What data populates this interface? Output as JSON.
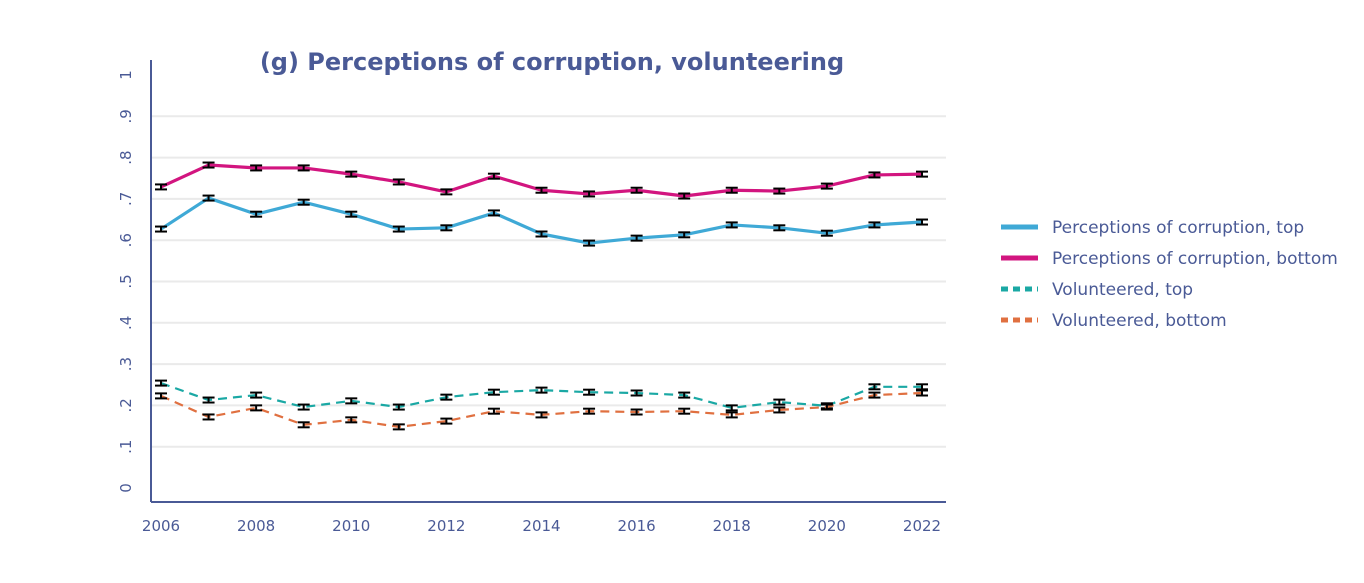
{
  "chart_data": {
    "type": "line",
    "title": "(g) Perceptions of corruption, volunteering",
    "xlabel": "",
    "ylabel": "",
    "x": [
      2006,
      2007,
      2008,
      2009,
      2010,
      2011,
      2012,
      2013,
      2014,
      2015,
      2016,
      2017,
      2018,
      2019,
      2020,
      2021,
      2022
    ],
    "xlim": [
      2006,
      2022
    ],
    "ylim": [
      0,
      1
    ],
    "x_ticks": [
      2006,
      2008,
      2010,
      2012,
      2014,
      2016,
      2018,
      2020,
      2022
    ],
    "x_tick_labels": [
      "2006",
      "2008",
      "2010",
      "2012",
      "2014",
      "2016",
      "2018",
      "2020",
      "2022"
    ],
    "y_ticks": [
      0,
      0.1,
      0.2,
      0.3,
      0.4,
      0.5,
      0.6,
      0.7,
      0.8,
      0.9,
      1
    ],
    "y_tick_labels": [
      "0",
      ".1",
      ".2",
      ".3",
      ".4",
      ".5",
      ".6",
      ".7",
      ".8",
      ".9",
      "1"
    ],
    "grid": "horizontal",
    "error_bars": true,
    "legend_position": "right",
    "series": [
      {
        "name": "Perceptions of corruption, top",
        "color": "#3fa9d6",
        "style": "solid",
        "values": [
          0.627,
          0.702,
          0.663,
          0.692,
          0.663,
          0.627,
          0.63,
          0.666,
          0.615,
          0.593,
          0.605,
          0.613,
          0.637,
          0.63,
          0.617,
          0.637,
          0.644
        ]
      },
      {
        "name": "Perceptions of corruption, bottom",
        "color": "#d2157f",
        "style": "solid",
        "values": [
          0.729,
          0.782,
          0.775,
          0.775,
          0.76,
          0.741,
          0.717,
          0.755,
          0.721,
          0.712,
          0.721,
          0.707,
          0.721,
          0.719,
          0.731,
          0.758,
          0.76
        ]
      },
      {
        "name": "Volunteered, top",
        "color": "#1aa8a4",
        "style": "dashed",
        "values": [
          0.254,
          0.213,
          0.225,
          0.196,
          0.211,
          0.196,
          0.22,
          0.232,
          0.237,
          0.232,
          0.23,
          0.225,
          0.194,
          0.208,
          0.199,
          0.245,
          0.245
        ]
      },
      {
        "name": "Volunteered, bottom",
        "color": "#e07040",
        "style": "dashed",
        "values": [
          0.223,
          0.172,
          0.194,
          0.153,
          0.165,
          0.148,
          0.162,
          0.186,
          0.177,
          0.186,
          0.184,
          0.186,
          0.177,
          0.189,
          0.196,
          0.225,
          0.23
        ]
      }
    ]
  }
}
